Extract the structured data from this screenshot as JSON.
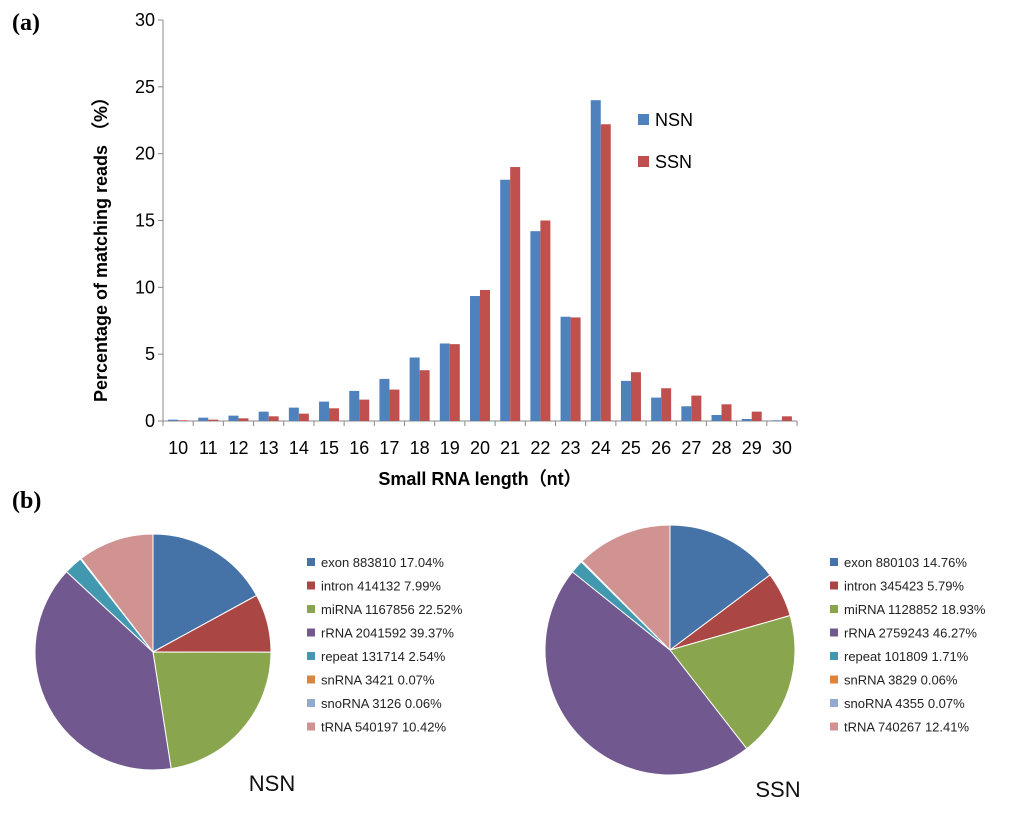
{
  "chart_data": [
    {
      "type": "bar",
      "panel_label": "(a)",
      "title": "",
      "xlabel": "Small RNA length（nt）",
      "ylabel": "Percentage of matching reads （%）",
      "ylim": [
        0,
        30
      ],
      "yticks": [
        0,
        5,
        10,
        15,
        20,
        25,
        30
      ],
      "categories": [
        "10",
        "11",
        "12",
        "13",
        "14",
        "15",
        "16",
        "17",
        "18",
        "19",
        "20",
        "21",
        "22",
        "23",
        "24",
        "25",
        "26",
        "27",
        "28",
        "29",
        "30"
      ],
      "series": [
        {
          "name": "NSN",
          "color": "#4F81BD",
          "values": [
            0.1,
            0.25,
            0.4,
            0.7,
            1.0,
            1.45,
            2.25,
            3.15,
            4.75,
            5.8,
            9.35,
            18.05,
            14.2,
            7.8,
            24.0,
            3.0,
            1.75,
            1.1,
            0.45,
            0.15,
            0.05
          ]
        },
        {
          "name": "SSN",
          "color": "#C0504D",
          "values": [
            0.05,
            0.1,
            0.2,
            0.35,
            0.55,
            0.95,
            1.6,
            2.35,
            3.8,
            5.75,
            9.8,
            19.0,
            15.0,
            7.75,
            22.2,
            3.65,
            2.45,
            1.9,
            1.25,
            0.7,
            0.35
          ]
        }
      ],
      "legend_position": "top-right"
    },
    {
      "type": "pie",
      "panel_label": "(b)",
      "title": "NSN",
      "slices": [
        {
          "label": "exon",
          "count": "883810",
          "percent_text": "17.04%",
          "value": 17.04,
          "color": "#4572A7"
        },
        {
          "label": "intron",
          "count": "414132",
          "percent_text": "7.99%",
          "value": 7.99,
          "color": "#AA4643"
        },
        {
          "label": "miRNA",
          "count": "1167856",
          "percent_text": "22.52%",
          "value": 22.52,
          "color": "#89A54E"
        },
        {
          "label": "rRNA",
          "count": "2041592",
          "percent_text": "39.37%",
          "value": 39.37,
          "color": "#71588F"
        },
        {
          "label": "repeat",
          "count": "131714",
          "percent_text": "2.54%",
          "value": 2.54,
          "color": "#4198AF"
        },
        {
          "label": "snRNA",
          "count": "3421",
          "percent_text": "0.07%",
          "value": 0.07,
          "color": "#DB843D"
        },
        {
          "label": "snoRNA",
          "count": "3126",
          "percent_text": "0.06%",
          "value": 0.06,
          "color": "#93A9CF"
        },
        {
          "label": "tRNA",
          "count": "540197",
          "percent_text": "10.42%",
          "value": 10.42,
          "color": "#D19392"
        }
      ]
    },
    {
      "type": "pie",
      "title": "SSN",
      "slices": [
        {
          "label": "exon",
          "count": "880103",
          "percent_text": "14.76%",
          "value": 14.76,
          "color": "#4572A7"
        },
        {
          "label": "intron",
          "count": "345423",
          "percent_text": "5.79%",
          "value": 5.79,
          "color": "#AA4643"
        },
        {
          "label": "miRNA",
          "count": "1128852",
          "percent_text": "18.93%",
          "value": 18.93,
          "color": "#89A54E"
        },
        {
          "label": "rRNA",
          "count": "2759243",
          "percent_text": "46.27%",
          "value": 46.27,
          "color": "#71588F"
        },
        {
          "label": "repeat",
          "count": "101809",
          "percent_text": "1.71%",
          "value": 1.71,
          "color": "#4198AF"
        },
        {
          "label": "snRNA",
          "count": "3829",
          "percent_text": "0.06%",
          "value": 0.06,
          "color": "#DB843D"
        },
        {
          "label": "snoRNA",
          "count": "4355",
          "percent_text": "0.07%",
          "value": 0.07,
          "color": "#93A9CF"
        },
        {
          "label": "tRNA",
          "count": "740267",
          "percent_text": "12.41%",
          "value": 12.41,
          "color": "#D19392"
        }
      ]
    }
  ]
}
